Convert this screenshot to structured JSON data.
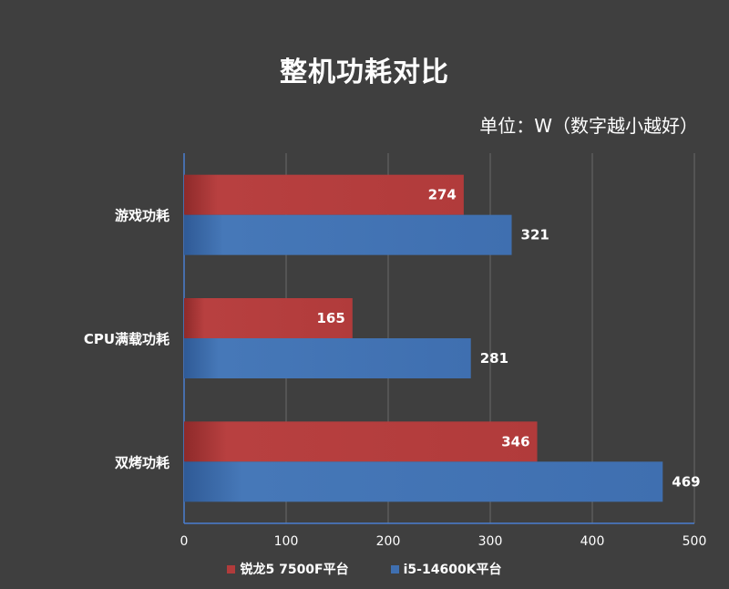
{
  "chart_data": {
    "type": "bar",
    "orientation": "horizontal",
    "title": "整机功耗对比",
    "subtitle": "单位：W（数字越小越好）",
    "categories": [
      "游戏功耗",
      "CPU满载功耗",
      "双烤功耗"
    ],
    "series": [
      {
        "name": "锐龙5 7500F平台",
        "color": "#b13b3b",
        "values": [
          274,
          165,
          346
        ]
      },
      {
        "name": "i5-14600K平台",
        "color": "#3f6fb0",
        "values": [
          321,
          281,
          469
        ]
      }
    ],
    "xlim": [
      0,
      500
    ],
    "xticks": [
      0,
      100,
      200,
      300,
      400,
      500
    ],
    "grid": true,
    "legend_position": "bottom-center"
  }
}
